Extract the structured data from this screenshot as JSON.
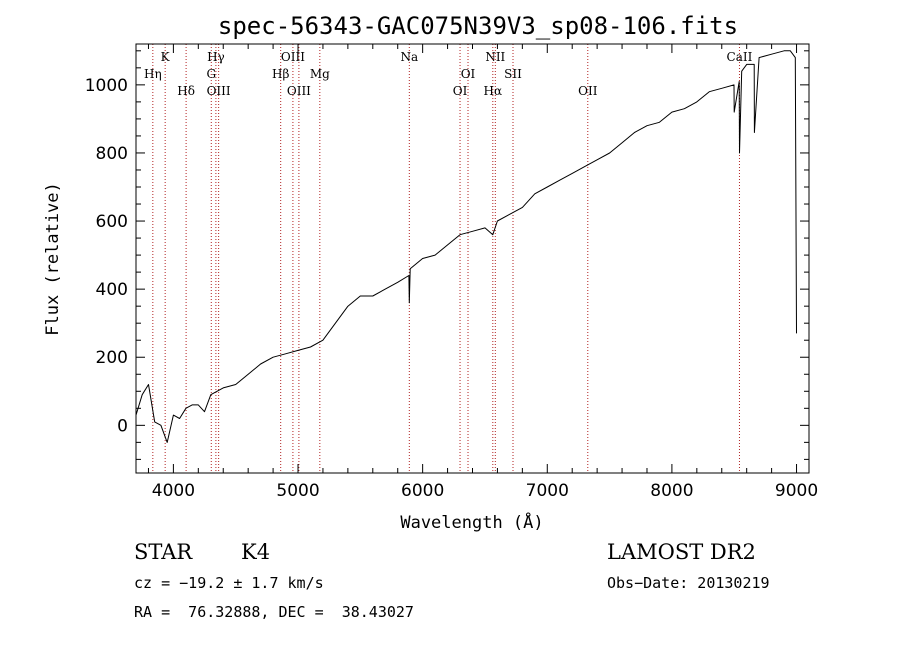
{
  "chart_data": {
    "type": "line",
    "title": "spec-56343-GAC075N39V3_sp08-106.fits",
    "xlabel": "Wavelength (Å)",
    "ylabel": "Flux (relative)",
    "xlim": [
      3700,
      9100
    ],
    "ylim": [
      -140,
      1120
    ],
    "xticks": [
      4000,
      5000,
      6000,
      7000,
      8000,
      9000
    ],
    "yticks": [
      0,
      200,
      400,
      600,
      800,
      1000
    ],
    "series": [
      {
        "color": "#000000",
        "x": [
          3700,
          3750,
          3800,
          3850,
          3900,
          3950,
          4000,
          4050,
          4100,
          4150,
          4200,
          4250,
          4300,
          4400,
          4500,
          4600,
          4700,
          4800,
          4900,
          5000,
          5100,
          5200,
          5300,
          5400,
          5500,
          5600,
          5700,
          5800,
          5890,
          5893,
          5900,
          6000,
          6100,
          6200,
          6300,
          6400,
          6500,
          6563,
          6600,
          6700,
          6800,
          6900,
          7000,
          7100,
          7200,
          7300,
          7400,
          7500,
          7600,
          7700,
          7800,
          7900,
          8000,
          8100,
          8200,
          8300,
          8400,
          8498,
          8500,
          8540,
          8542,
          8560,
          8600,
          8660,
          8662,
          8700,
          8800,
          8900,
          8950,
          8990,
          9000
        ],
        "y": [
          30,
          90,
          120,
          10,
          0,
          -50,
          30,
          20,
          50,
          60,
          60,
          40,
          90,
          110,
          120,
          150,
          180,
          200,
          210,
          220,
          230,
          250,
          300,
          350,
          380,
          380,
          400,
          420,
          440,
          360,
          460,
          490,
          500,
          530,
          560,
          570,
          580,
          560,
          600,
          620,
          640,
          680,
          700,
          720,
          740,
          760,
          780,
          800,
          830,
          860,
          880,
          890,
          920,
          930,
          950,
          980,
          990,
          1000,
          920,
          1010,
          800,
          1040,
          1060,
          1060,
          860,
          1080,
          1090,
          1100,
          1100,
          1080,
          270
        ]
      }
    ],
    "spectral_lines": [
      {
        "label": "Hη",
        "x": 3835,
        "row": 2
      },
      {
        "label": "K",
        "x": 3934,
        "row": 1
      },
      {
        "label": "Hδ",
        "x": 4102,
        "row": 3
      },
      {
        "label": "Hγ",
        "x": 4341,
        "row": 1
      },
      {
        "label": "G",
        "x": 4304,
        "row": 2
      },
      {
        "label": "OIII",
        "x": 4363,
        "row": 3
      },
      {
        "label": "OIII",
        "x": 4959,
        "row": 1
      },
      {
        "label": "Hβ",
        "x": 4861,
        "row": 2
      },
      {
        "label": "OIII",
        "x": 5007,
        "row": 3
      },
      {
        "label": "Mg",
        "x": 5175,
        "row": 2
      },
      {
        "label": "Na",
        "x": 5893,
        "row": 1
      },
      {
        "label": "OI",
        "x": 6364,
        "row": 2
      },
      {
        "label": "OI",
        "x": 6300,
        "row": 3
      },
      {
        "label": "NII",
        "x": 6583,
        "row": 1
      },
      {
        "label": "Hα",
        "x": 6563,
        "row": 3
      },
      {
        "label": "SII",
        "x": 6725,
        "row": 2
      },
      {
        "label": "OII",
        "x": 7325,
        "row": 3
      },
      {
        "label": "CaII",
        "x": 8542,
        "row": 1
      }
    ],
    "line_color": "#b22222",
    "grid": false
  },
  "info": {
    "class_label": "STAR",
    "subclass": "K4",
    "cz": "cz = −19.2 ± 1.7 km/s",
    "radec": "RA =  76.32888, DEC =  38.43027",
    "survey": "LAMOST DR2",
    "obs_date": "Obs−Date: 20130219"
  }
}
